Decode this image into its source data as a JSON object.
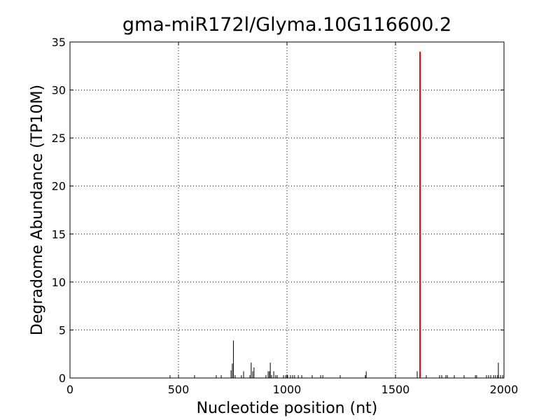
{
  "chart_data": {
    "type": "stem",
    "title": "gma-miR172l/Glyma.10G116600.2",
    "xlabel": "Nucleotide position (nt)",
    "ylabel": "Degradome Abundance (TP10M)",
    "xlim": [
      0,
      2000
    ],
    "xticks": [
      0,
      500,
      1000,
      1500,
      2000
    ],
    "ylim": [
      0,
      35
    ],
    "yticks": [
      0,
      5,
      10,
      15,
      20,
      25,
      30,
      35
    ],
    "grid": true,
    "series": [
      {
        "color": "#000000",
        "x": [
          461,
          574,
          674,
          697,
          742,
          748,
          753,
          761,
          790,
          800,
          829,
          835,
          842,
          848,
          903,
          913,
          919,
          923,
          929,
          939,
          948,
          955,
          984,
          994,
          1003,
          1016,
          1026,
          1035,
          1052,
          1068,
          1116,
          1155,
          1165,
          1245,
          1361,
          1365,
          1600,
          1642,
          1703,
          1713,
          1732,
          1739,
          1771,
          1816,
          1868,
          1874,
          1919,
          1929,
          1939,
          1952,
          1961,
          1971,
          1974,
          1984,
          1994
        ],
        "values": [
          0.3,
          0.3,
          0.3,
          0.3,
          0.8,
          1.5,
          3.9,
          0.3,
          0.3,
          0.7,
          0.3,
          1.6,
          0.7,
          1.1,
          0.3,
          0.7,
          0.7,
          1.6,
          0.3,
          0.7,
          0.3,
          0.3,
          0.3,
          0.3,
          0.3,
          0.3,
          0.3,
          0.3,
          0.3,
          0.3,
          0.3,
          0.3,
          0.3,
          0.3,
          0.3,
          0.7,
          0.7,
          0.3,
          0.3,
          0.3,
          0.3,
          0.3,
          0.3,
          0.3,
          0.3,
          0.3,
          0.3,
          0.3,
          0.3,
          0.3,
          0.3,
          0.3,
          1.6,
          0.3,
          0.3
        ]
      },
      {
        "color": "#ff0000",
        "x": [
          1613
        ],
        "values": [
          34
        ]
      }
    ]
  }
}
